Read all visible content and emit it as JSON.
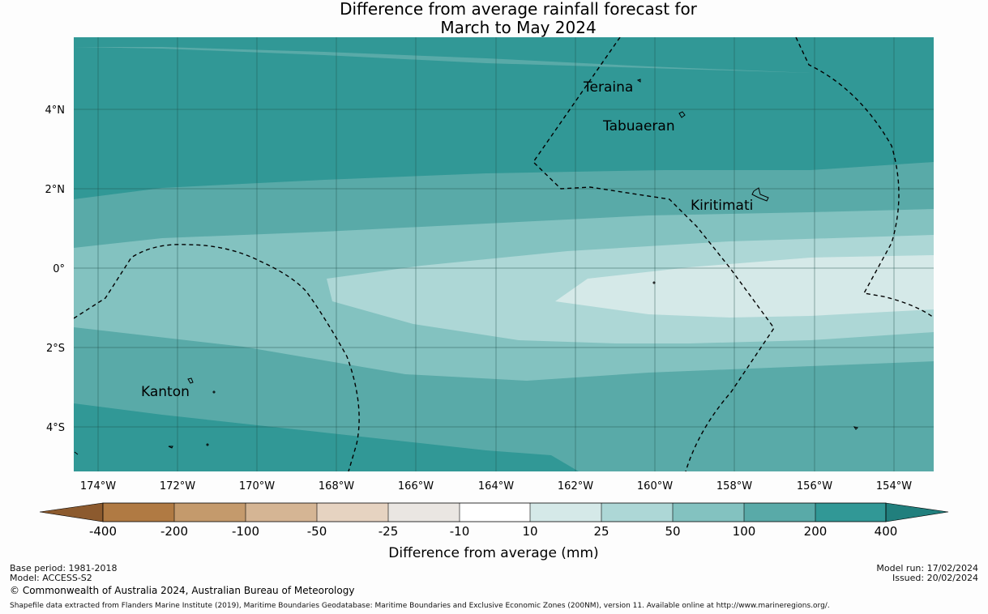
{
  "title": {
    "line1": "Difference from average rainfall forecast for",
    "line2": "March to May 2024"
  },
  "map": {
    "lon_ticks": [
      "174°W",
      "172°W",
      "170°W",
      "168°W",
      "166°W",
      "164°W",
      "162°W",
      "160°W",
      "158°W",
      "156°W",
      "154°W"
    ],
    "lat_ticks": [
      "4°N",
      "2°N",
      "0°",
      "2°S",
      "4°S"
    ],
    "places": [
      {
        "name": "Teraina",
        "id": "teraina"
      },
      {
        "name": "Tabuaeran",
        "id": "tabuaeran"
      },
      {
        "name": "Kiritimati",
        "id": "kiritimati"
      },
      {
        "name": "Kanton",
        "id": "kanton"
      }
    ]
  },
  "colorbar": {
    "title": "Difference from average (mm)",
    "labels": [
      "-400",
      "-200",
      "-100",
      "-50",
      "-25",
      "-10",
      "10",
      "25",
      "50",
      "100",
      "200",
      "400"
    ],
    "colors": [
      "#8c5a2e",
      "#b07a43",
      "#c49a6c",
      "#d5b594",
      "#e6d3c1",
      "#eae6e2",
      "#ffffff",
      "#d5e9e8",
      "#add7d6",
      "#83c2c0",
      "#59aaa8",
      "#319896",
      "#217f7d"
    ]
  },
  "footer": {
    "base_period": "Base period: 1981-2018",
    "model": "Model: ACCESS-S2",
    "copyright": "© Commonwealth of Australia 2024, Australian Bureau of Meteorology",
    "shapefile": "Shapefile data extracted from Flanders Marine Institute (2019), Maritime Boundaries Geodatabase: Maritime Boundaries and Exclusive Economic Zones (200NM), version 11. Available online at http://www.marineregions.org/.",
    "model_run": "Model run: 17/02/2024",
    "issued": "Issued: 20/02/2024"
  }
}
